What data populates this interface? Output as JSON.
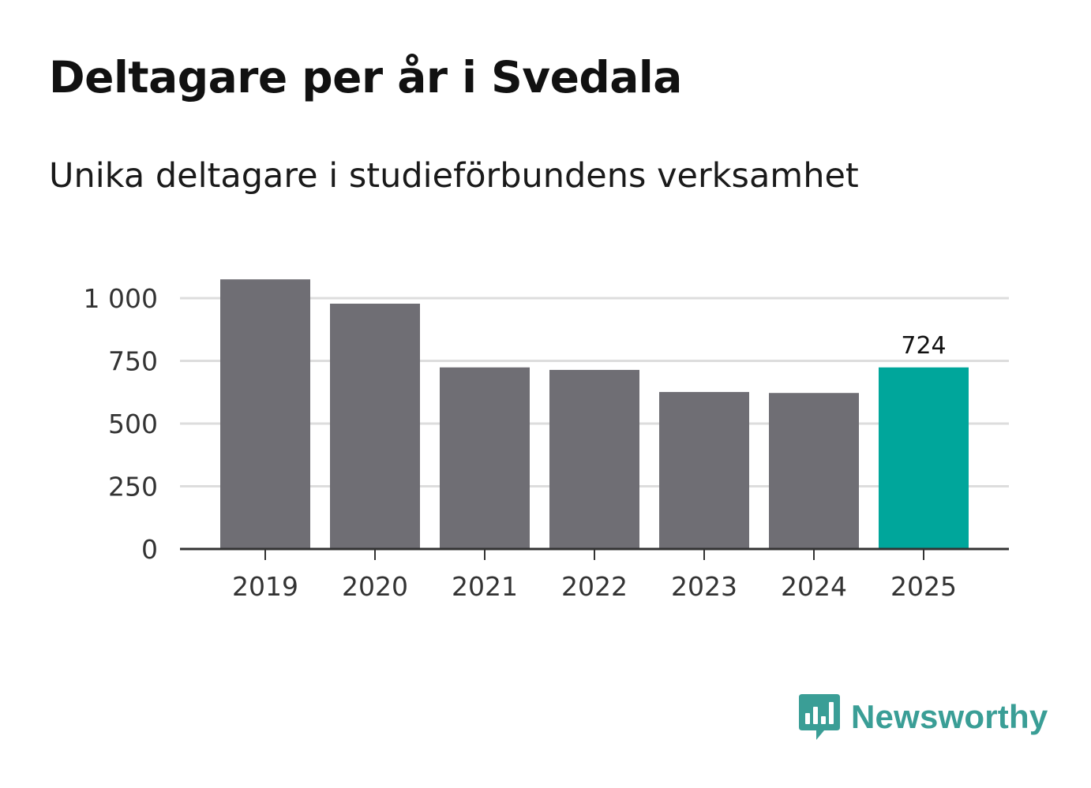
{
  "header": {
    "title": "Deltagare per år i Svedala",
    "subtitle": "Unika deltagare i studieförbundens verksamhet"
  },
  "colors": {
    "bar": "#6f6e74",
    "highlight": "#00a69b",
    "grid": "#dddddd",
    "axis": "#333333",
    "brand": "#3a9e96"
  },
  "chart_data": {
    "type": "bar",
    "title": "Deltagare per år i Svedala",
    "subtitle": "Unika deltagare i studieförbundens verksamhet",
    "categories": [
      "2019",
      "2020",
      "2021",
      "2022",
      "2023",
      "2024",
      "2025"
    ],
    "values": [
      1075,
      978,
      724,
      714,
      626,
      622,
      724
    ],
    "highlight_index": 6,
    "data_labels": [
      {
        "index": 6,
        "text": "724"
      }
    ],
    "ylim": [
      0,
      1000
    ],
    "yticks": [
      0,
      250,
      500,
      750,
      1000
    ],
    "ytick_labels": [
      "0",
      "250",
      "500",
      "750",
      "1 000"
    ],
    "xlabel": "",
    "ylabel": "",
    "grid": true
  },
  "brand": {
    "name": "Newsworthy",
    "icon": "newsworthy-logo-icon"
  }
}
